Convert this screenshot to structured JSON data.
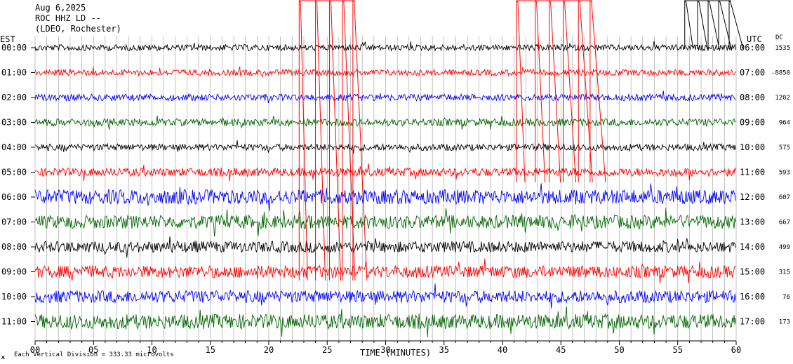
{
  "header": {
    "date": "Aug 6,2025",
    "station": "ROC HHZ LD --",
    "network": "(LDEO, Rochester)"
  },
  "labels": {
    "left_zone": "EST",
    "right_zone": "UTC",
    "dc": "DC",
    "x_title": "TIME (MINUTES)",
    "footnote": "Each Vertical Division = 333.33 microvolts",
    "footnote_mark": "ж"
  },
  "chart_data": {
    "type": "line",
    "x_ticks": [
      "00",
      "05",
      "10",
      "15",
      "20",
      "25",
      "30",
      "35",
      "40",
      "45",
      "50",
      "55",
      "60"
    ],
    "x_range": [
      0,
      60
    ],
    "grid": true,
    "rows": [
      {
        "est": "00:00",
        "utc": "06:00",
        "dc": "1535",
        "color": "#000000",
        "amp": 0.55
      },
      {
        "est": "01:00",
        "utc": "07:00",
        "dc": "-8850",
        "color": "#ff0000",
        "amp": 0.55
      },
      {
        "est": "02:00",
        "utc": "08:00",
        "dc": "1202",
        "color": "#0000ff",
        "amp": 0.6
      },
      {
        "est": "03:00",
        "utc": "09:00",
        "dc": "964",
        "color": "#006400",
        "amp": 0.65
      },
      {
        "est": "04:00",
        "utc": "10:00",
        "dc": "575",
        "color": "#000000",
        "amp": 0.6
      },
      {
        "est": "05:00",
        "utc": "11:00",
        "dc": "593",
        "color": "#ff0000",
        "amp": 0.75
      },
      {
        "est": "06:00",
        "utc": "12:00",
        "dc": "607",
        "color": "#0000ff",
        "amp": 1.3
      },
      {
        "est": "07:00",
        "utc": "13:00",
        "dc": "667",
        "color": "#006400",
        "amp": 1.2
      },
      {
        "est": "08:00",
        "utc": "14:00",
        "dc": "499",
        "color": "#000000",
        "amp": 1.0
      },
      {
        "est": "09:00",
        "utc": "15:00",
        "dc": "315",
        "color": "#ff0000",
        "amp": 1.1
      },
      {
        "est": "10:00",
        "utc": "16:00",
        "dc": "76",
        "color": "#0000ff",
        "amp": 1.1
      },
      {
        "est": "11:00",
        "utc": "17:00",
        "dc": "173",
        "color": "#006400",
        "amp": 1.3
      }
    ]
  }
}
